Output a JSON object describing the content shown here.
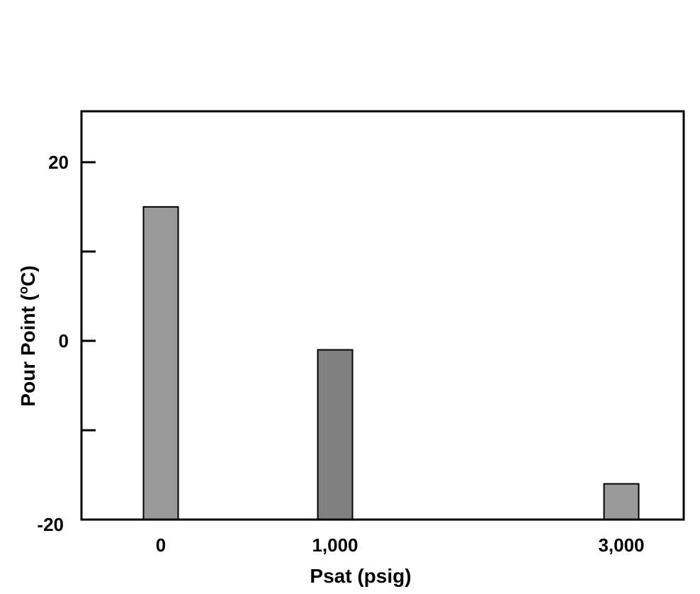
{
  "chart_data": {
    "type": "bar",
    "title": "",
    "xlabel": "Psat (psig)",
    "ylabel": "Pour Point (oC)",
    "ylabel_parts": {
      "main": "Pour Point (",
      "sup": "o",
      "unit": "C)"
    },
    "categories": [
      "0",
      "1,000",
      "3,000"
    ],
    "x_positions": [
      0,
      1000,
      3000
    ],
    "values": [
      15,
      -1,
      -16
    ],
    "bar_colors": [
      "#999999",
      "#808080",
      "#999999"
    ],
    "ylim": [
      -20,
      25.7
    ],
    "yticks": [
      -20,
      -10,
      0,
      10,
      20
    ],
    "ytick_labels": [
      {
        "value": -20,
        "label": "-20"
      },
      {
        "value": -10,
        "label": ""
      },
      {
        "value": 0,
        "label": "0"
      },
      {
        "value": 10,
        "label": ""
      },
      {
        "value": 20,
        "label": "20"
      }
    ],
    "grid": false,
    "legend": null
  }
}
